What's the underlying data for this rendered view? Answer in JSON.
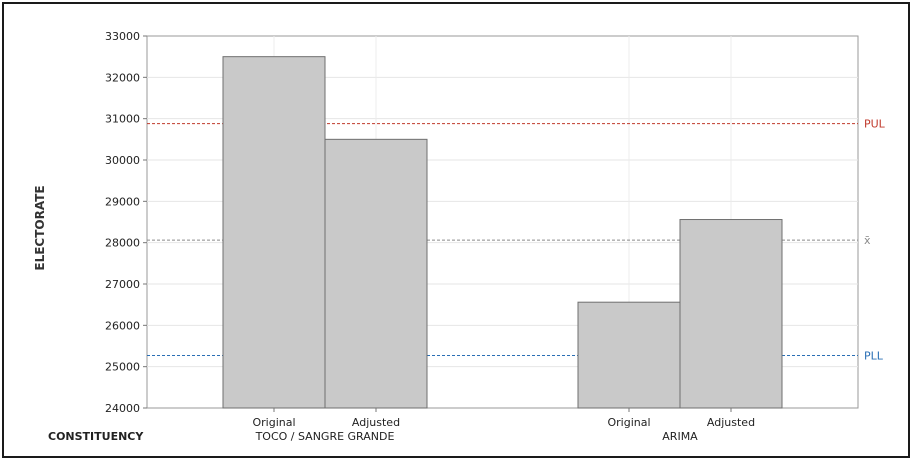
{
  "chart_data": {
    "type": "bar",
    "ylabel": "ELECTORATE",
    "xlabel": "CONSTITUENCY",
    "ylim": [
      24000,
      33000
    ],
    "yticks": [
      24000,
      25000,
      26000,
      27000,
      28000,
      29000,
      30000,
      31000,
      32000,
      33000
    ],
    "grid": true,
    "groups": [
      {
        "name": "TOCO / SANGRE GRANDE",
        "bars": [
          {
            "label": "Original",
            "value": 32500
          },
          {
            "label": "Adjusted",
            "value": 30500
          }
        ]
      },
      {
        "name": "ARIMA",
        "bars": [
          {
            "label": "Original",
            "value": 26560
          },
          {
            "label": "Adjusted",
            "value": 28560
          }
        ]
      }
    ],
    "reference_lines": [
      {
        "label": "PUL",
        "value": 30880,
        "color": "#c0392b"
      },
      {
        "label": "x̄",
        "value": 28060,
        "color": "#8a8a8a"
      },
      {
        "label": "PLL",
        "value": 25270,
        "color": "#2a6fb5"
      }
    ],
    "bar_color": "#c9c9c9"
  }
}
